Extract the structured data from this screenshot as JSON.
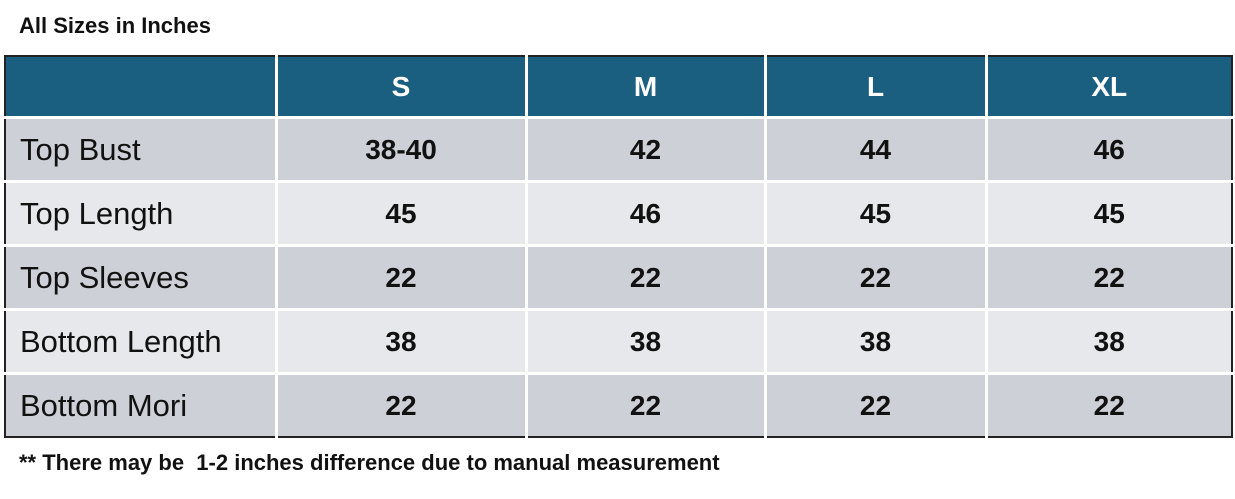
{
  "header": {
    "title": "All Sizes in Inches"
  },
  "table": {
    "columns": [
      "S",
      "M",
      "L",
      "XL"
    ],
    "rows": [
      {
        "label": "Top Bust",
        "values": [
          "38-40",
          42,
          44,
          46
        ]
      },
      {
        "label": "Top Length",
        "values": [
          45,
          46,
          45,
          45
        ]
      },
      {
        "label": "Top Sleeves",
        "values": [
          22,
          22,
          22,
          22
        ]
      },
      {
        "label": "Bottom Length",
        "values": [
          38,
          38,
          38,
          38
        ]
      },
      {
        "label": "Bottom Mori",
        "values": [
          22,
          22,
          22,
          22
        ]
      }
    ]
  },
  "footer": {
    "note": "** There may be  1-2 inches difference due to manual measurement"
  }
}
